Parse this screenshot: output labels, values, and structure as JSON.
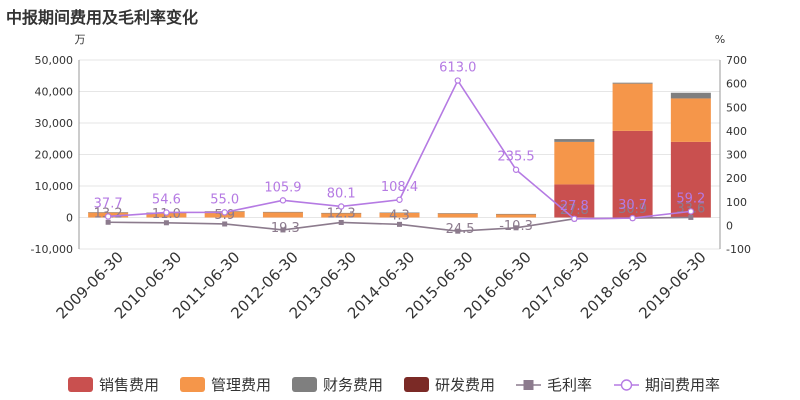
{
  "chart_data": {
    "type": "bar+line",
    "title": "中报期间费用及毛利率变化",
    "left_unit": "万",
    "right_unit": "%",
    "categories": [
      "2009-06-30",
      "2010-06-30",
      "2011-06-30",
      "2012-06-30",
      "2013-06-30",
      "2014-06-30",
      "2015-06-30",
      "2016-06-30",
      "2017-06-30",
      "2018-06-30",
      "2019-06-30"
    ],
    "left_axis": {
      "min": -10000,
      "max": 50000,
      "ticks": [
        -10000,
        0,
        10000,
        20000,
        30000,
        40000,
        50000
      ],
      "tick_labels": [
        "-10,000",
        "0",
        "10,000",
        "20,000",
        "30,000",
        "40,000",
        "50,000"
      ]
    },
    "right_axis": {
      "min": -100,
      "max": 700,
      "ticks": [
        -100,
        0,
        100,
        200,
        300,
        400,
        500,
        600,
        700
      ],
      "tick_labels": [
        "-100",
        "0",
        "100",
        "200",
        "300",
        "400",
        "500",
        "600",
        "700"
      ]
    },
    "bar_series": [
      {
        "name": "销售费用",
        "color": "#c9504f",
        "values": [
          0,
          0,
          0,
          0,
          0,
          0,
          0,
          0,
          10500,
          27500,
          24000
        ]
      },
      {
        "name": "管理费用",
        "color": "#f5964a",
        "values": [
          1600,
          1500,
          1900,
          1700,
          1400,
          1500,
          1300,
          1100,
          13500,
          15000,
          13800
        ]
      },
      {
        "name": "财务费用",
        "color": "#7f7f7f",
        "values": [
          80,
          60,
          100,
          80,
          60,
          80,
          60,
          40,
          900,
          300,
          1800
        ]
      },
      {
        "name": "研发费用",
        "color": "#7b2a26",
        "values": [
          0,
          0,
          0,
          0,
          0,
          0,
          0,
          0,
          0,
          0,
          0
        ]
      }
    ],
    "line_series": [
      {
        "name": "毛利率",
        "color": "#8c7b8d",
        "marker": "square",
        "values": [
          13.2,
          11.0,
          5.9,
          -19.3,
          12.3,
          4.3,
          -24.5,
          -10.3,
          27.8,
          30.9,
          33.6
        ],
        "labels": [
          "13.2",
          "11.0",
          "5.9",
          "-19.3",
          "12.3",
          "4.3",
          "-24.5",
          "-10.3",
          "27.8",
          "30.9",
          "33.6"
        ]
      },
      {
        "name": "期间费用率",
        "color": "#b57ae3",
        "marker": "circle",
        "values": [
          37.7,
          54.6,
          55.0,
          105.9,
          80.1,
          108.4,
          613.0,
          235.5,
          27.8,
          30.7,
          59.2
        ],
        "labels": [
          "37.7",
          "54.6",
          "55.0",
          "105.9",
          "80.1",
          "108.4",
          "613.0",
          "235.5",
          "27.8",
          "30.7",
          "59.2"
        ]
      }
    ],
    "grid": true,
    "legend_position": "bottom"
  }
}
